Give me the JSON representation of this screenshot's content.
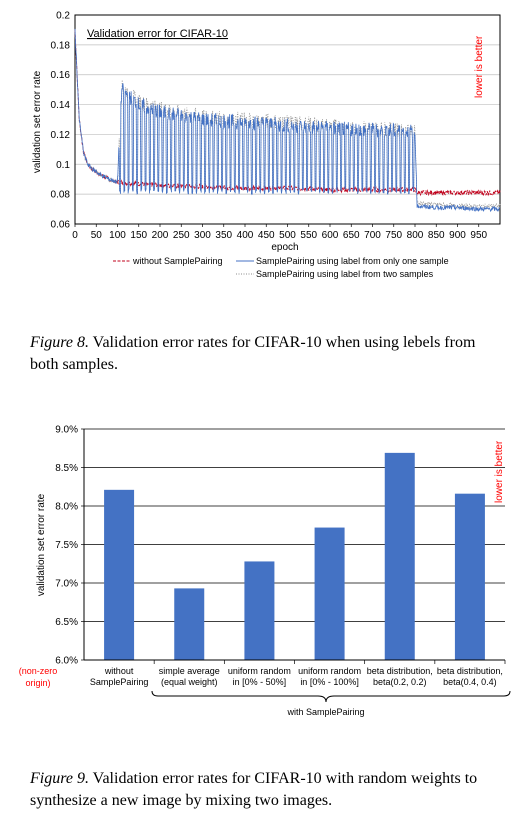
{
  "figure8": {
    "caption_label": "Figure 8.",
    "caption_text": " Validation error rates for CIFAR-10 when using lebels from both samples."
  },
  "figure9": {
    "caption_label": "Figure 9.",
    "caption_text": " Validation error rates for CIFAR-10 with random weights to synthesize a new image by mixing two images."
  },
  "chart_data": [
    {
      "type": "line",
      "title": "Validation error for CIFAR-10",
      "xlabel": "epoch",
      "ylabel": "validation set error rate",
      "xlim": [
        0,
        1000
      ],
      "ylim": [
        0.06,
        0.2
      ],
      "xticks": [
        0,
        50,
        100,
        150,
        200,
        250,
        300,
        350,
        400,
        450,
        500,
        550,
        600,
        650,
        700,
        750,
        800,
        850,
        900,
        950
      ],
      "yticks": [
        0.06,
        0.08,
        0.1,
        0.12,
        0.14,
        0.16,
        0.18,
        0.2
      ],
      "ytick_labels": [
        "0.06",
        "0.08",
        "0.1",
        "0.12",
        "0.14",
        "0.16",
        "0.18",
        "0.2"
      ],
      "annotation": "lower is better",
      "annotation_color": "#ff0000",
      "grid": true,
      "legend_position": "bottom",
      "series": [
        {
          "name": "without SamplePairing",
          "color": "#c0001b",
          "style": "dashed",
          "x": [
            0,
            5,
            10,
            20,
            30,
            40,
            60,
            80,
            100,
            150,
            200,
            300,
            400,
            500,
            600,
            700,
            800,
            805,
            850,
            900,
            950,
            1000
          ],
          "y": [
            0.19,
            0.16,
            0.13,
            0.108,
            0.1,
            0.097,
            0.093,
            0.09,
            0.088,
            0.087,
            0.086,
            0.085,
            0.084,
            0.084,
            0.083,
            0.083,
            0.083,
            0.081,
            0.081,
            0.081,
            0.081,
            0.081
          ]
        },
        {
          "name": "SamplePairing using label from only one sample",
          "color": "#4472c4",
          "style": "solid",
          "x": [
            0,
            5,
            10,
            20,
            30,
            40,
            60,
            80,
            100,
            110,
            150,
            200,
            300,
            400,
            500,
            600,
            700,
            790,
            800,
            805,
            850,
            900,
            950,
            1000
          ],
          "y": [
            0.19,
            0.16,
            0.13,
            0.108,
            0.1,
            0.097,
            0.093,
            0.09,
            0.088,
            0.15,
            0.14,
            0.135,
            0.13,
            0.128,
            0.126,
            0.124,
            0.123,
            0.122,
            0.12,
            0.072,
            0.071,
            0.071,
            0.07,
            0.07
          ],
          "oscillation_low": 0.08,
          "oscillation_range": [
            100,
            800
          ]
        },
        {
          "name": "SamplePairing using label from two samples",
          "color": "#8c8c8c",
          "style": "dotted",
          "x": [
            0,
            5,
            10,
            20,
            30,
            40,
            60,
            80,
            100,
            110,
            150,
            200,
            300,
            400,
            500,
            600,
            700,
            790,
            800,
            805,
            850,
            900,
            950,
            1000
          ],
          "y": [
            0.19,
            0.16,
            0.13,
            0.108,
            0.1,
            0.097,
            0.093,
            0.09,
            0.088,
            0.152,
            0.142,
            0.137,
            0.132,
            0.13,
            0.128,
            0.126,
            0.124,
            0.123,
            0.121,
            0.074,
            0.073,
            0.072,
            0.072,
            0.072
          ],
          "oscillation_low": 0.082,
          "oscillation_range": [
            100,
            800
          ]
        }
      ]
    },
    {
      "type": "bar",
      "title": "",
      "xlabel": "",
      "ylabel": "validation set error rate",
      "ylim": [
        6.0,
        9.0
      ],
      "yticks": [
        "6.0%",
        "6.5%",
        "7.0%",
        "7.5%",
        "8.0%",
        "8.5%",
        "9.0%"
      ],
      "categories": [
        [
          "without",
          "SamplePairing"
        ],
        [
          "simple average",
          "(equal weight)"
        ],
        [
          "uniform random",
          "in [0% - 50%]"
        ],
        [
          "uniform random",
          "in [0% - 100%]"
        ],
        [
          "beta distribution,",
          "beta(0.2, 0.2)"
        ],
        [
          "beta distribution,",
          "beta(0.4, 0.4)"
        ]
      ],
      "values": [
        8.21,
        6.93,
        7.28,
        7.72,
        8.69,
        8.16
      ],
      "bar_color": "#4472c4",
      "origin_note": [
        "(non-zero",
        "origin)"
      ],
      "origin_note_color": "#ff0000",
      "group_label": "with SamplePairing",
      "annotation": "lower is better",
      "annotation_color": "#ff0000",
      "grid": true
    }
  ]
}
